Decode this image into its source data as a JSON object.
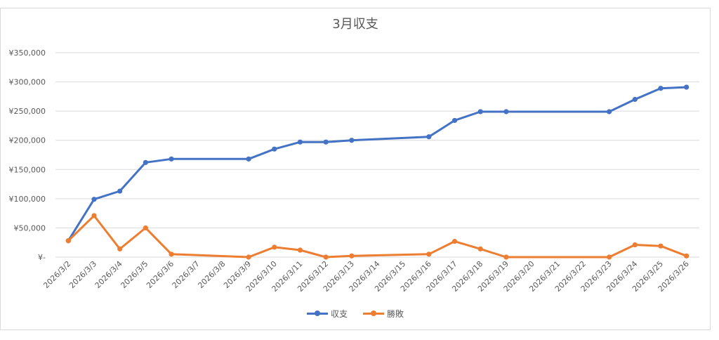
{
  "chart_data": {
    "type": "line",
    "title": "3月収支",
    "categories": [
      "2026/3/2",
      "2026/3/3",
      "2026/3/4",
      "2026/3/5",
      "2026/3/6",
      "2026/3/7",
      "2026/3/8",
      "2026/3/9",
      "2026/3/10",
      "2026/3/11",
      "2026/3/12",
      "2026/3/13",
      "2026/3/14",
      "2026/3/15",
      "2026/3/16",
      "2026/3/17",
      "2026/3/18",
      "2026/3/19",
      "2026/3/20",
      "2026/3/21",
      "2026/3/22",
      "2026/3/23",
      "2026/3/24",
      "2026/3/25",
      "2026/3/26"
    ],
    "y_ticks": [
      "¥-",
      "¥50,000",
      "¥100,000",
      "¥150,000",
      "¥200,000",
      "¥250,000",
      "¥300,000",
      "¥350,000"
    ],
    "ylim": [
      0,
      350000
    ],
    "grid": true,
    "legend_position": "bottom",
    "series": [
      {
        "name": "収支",
        "color": "#4472c4",
        "values": [
          28000,
          99000,
          113000,
          162000,
          168000,
          null,
          null,
          168000,
          185000,
          197000,
          197000,
          200000,
          null,
          null,
          206000,
          234000,
          249000,
          249000,
          null,
          null,
          null,
          249000,
          270000,
          289000,
          291000
        ]
      },
      {
        "name": "勝敗",
        "color": "#ed7d31",
        "values": [
          28000,
          71000,
          14000,
          50000,
          5000,
          null,
          null,
          0,
          17000,
          12000,
          0,
          2000,
          null,
          null,
          5000,
          27000,
          14000,
          0,
          null,
          null,
          null,
          0,
          21000,
          19000,
          2000
        ]
      }
    ]
  }
}
